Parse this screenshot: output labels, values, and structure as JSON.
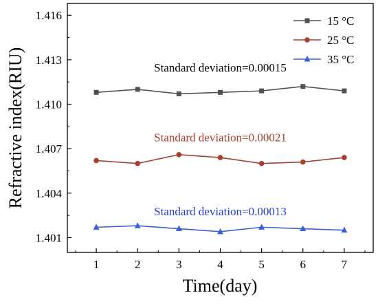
{
  "chart_data": {
    "type": "line",
    "title": "",
    "xlabel": "Time(day)",
    "ylabel": "Refractive index(RIU)",
    "x": [
      1,
      2,
      3,
      4,
      5,
      6,
      7
    ],
    "xlim": [
      0.3,
      7.7
    ],
    "ylim": [
      1.4,
      1.4168
    ],
    "xticks": [
      1,
      2,
      3,
      4,
      5,
      6,
      7
    ],
    "yticks": [
      1.401,
      1.404,
      1.407,
      1.41,
      1.413,
      1.416
    ],
    "ytick_labels": [
      "1.401",
      "1.404",
      "1.407",
      "1.410",
      "1.413",
      "1.416"
    ],
    "grid": false,
    "legend_position": "top-right",
    "series": [
      {
        "name": "15 °C",
        "color": "#505050",
        "marker": "square",
        "values": [
          1.4108,
          1.411,
          1.4107,
          1.4108,
          1.4109,
          1.4112,
          1.4109
        ]
      },
      {
        "name": "25 °C",
        "color": "#a83f2e",
        "marker": "circle",
        "values": [
          1.4062,
          1.406,
          1.4066,
          1.4064,
          1.406,
          1.4061,
          1.4064
        ]
      },
      {
        "name": "35 °C",
        "color": "#3a5fd8",
        "marker": "triangle",
        "values": [
          1.4017,
          1.4018,
          1.4016,
          1.4014,
          1.4017,
          1.4016,
          1.4015
        ]
      }
    ],
    "annotations": [
      {
        "text": "Standard deviation=0.00015",
        "color": "#000000",
        "x": 4,
        "y": 1.4122
      },
      {
        "text": "Standard deviation=0.00021",
        "color": "#a83f2e",
        "x": 4,
        "y": 1.4075
      },
      {
        "text": "Standard deviation=0.00013",
        "color": "#1f3fd1",
        "x": 4,
        "y": 1.4025
      }
    ]
  }
}
